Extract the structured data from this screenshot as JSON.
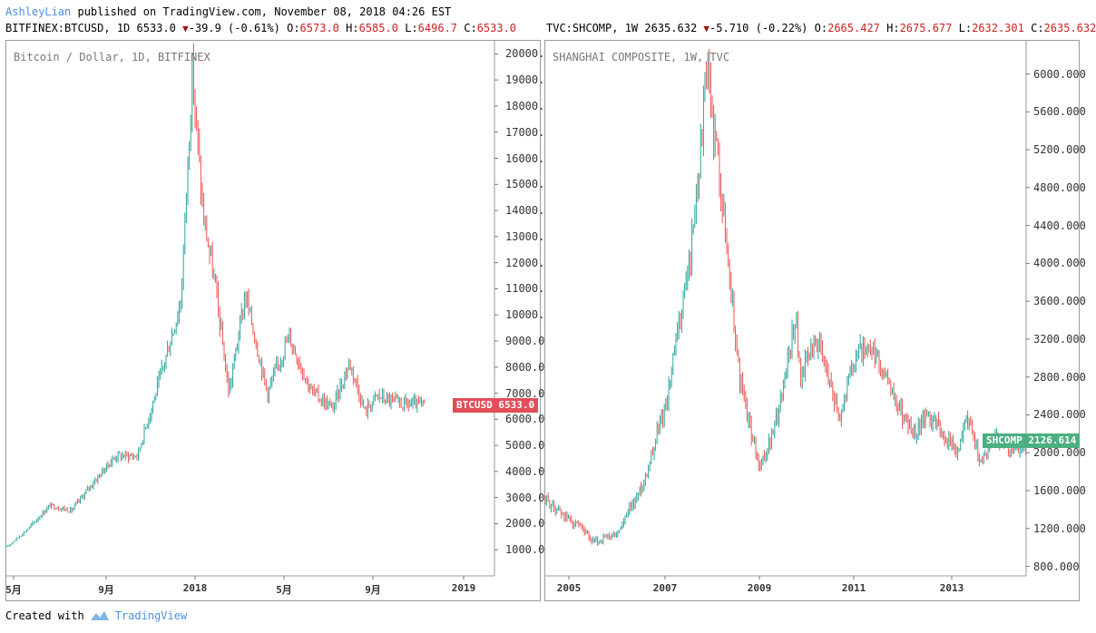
{
  "header": {
    "author": "AshleyLian",
    "published_text": " published on TradingView.com, November 08, 2018 04:26 EST"
  },
  "left_info": {
    "prefix": "BITFINEX:BTCUSD, 1D 6533.0",
    "change": "-39.9 (-0.61%)",
    "o_label": "O:",
    "o_val": "6573.0",
    "h_label": "H:",
    "h_val": "6585.0",
    "l_label": "L:",
    "l_val": "6496.7",
    "c_label": "C:",
    "c_val": "6533.0"
  },
  "right_info": {
    "prefix": "TVC:SHCOMP, 1W 2635.632",
    "change": "-5.710 (-0.22%)",
    "o_label": "O:",
    "o_val": "2665.427",
    "h_label": "H:",
    "h_val": "2675.677",
    "l_label": "L:",
    "l_val": "2632.301",
    "c_label": "C:",
    "c_val": "2635.632"
  },
  "footer": {
    "created_with": "Created with",
    "brand": "TradingView"
  },
  "colors": {
    "up": "#26a69a",
    "down": "#ef5350",
    "btc_tag": "#e04e5a",
    "shcomp_tag": "#4caf80"
  },
  "chart_data": [
    {
      "type": "line",
      "title": "Bitcoin / Dollar, 1D, BITFINEX",
      "symbol_tag": "BTCUSD",
      "last_value_label": "6533.0",
      "last_value": 6533,
      "ylim": [
        0,
        20500
      ],
      "yticks": [
        "1000.0",
        "2000.0",
        "3000.0",
        "4000.0",
        "5000.0",
        "6000.0",
        "7000.0",
        "8000.0",
        "9000.0",
        "10000.0",
        "11000.0",
        "12000.0",
        "13000.0",
        "14000.0",
        "15000.0",
        "16000.0",
        "17000.0",
        "18000.0",
        "19000.0",
        "20000.0"
      ],
      "xticks": [
        "5月",
        "9月",
        "2018",
        "5月",
        "9月",
        "2019"
      ],
      "x": [
        "2017-04-01",
        "2017-05-01",
        "2017-06-01",
        "2017-07-01",
        "2017-08-01",
        "2017-09-01",
        "2017-10-01",
        "2017-11-01",
        "2017-12-01",
        "2017-12-17",
        "2018-01-01",
        "2018-01-17",
        "2018-02-06",
        "2018-03-01",
        "2018-04-01",
        "2018-05-01",
        "2018-06-01",
        "2018-07-01",
        "2018-07-25",
        "2018-08-15",
        "2018-09-01",
        "2018-10-01",
        "2018-11-08"
      ],
      "values": [
        1100,
        1800,
        2700,
        2500,
        3600,
        4600,
        4600,
        7500,
        10500,
        19300,
        13800,
        11300,
        7000,
        10800,
        7000,
        9200,
        7100,
        6400,
        8200,
        6300,
        6900,
        6600,
        6533
      ]
    },
    {
      "type": "line",
      "title": "SHANGHAI COMPOSITE, 1W, TVC",
      "symbol_tag": "SHCOMP",
      "last_value_label": "2126.614",
      "last_value": 2126.614,
      "ylim": [
        700,
        6350
      ],
      "yticks": [
        "800.000",
        "1200.000",
        "1600.000",
        "2000.000",
        "2400.000",
        "2800.000",
        "3200.000",
        "3600.000",
        "4000.000",
        "4400.000",
        "4800.000",
        "5200.000",
        "5600.000",
        "6000.000"
      ],
      "xticks": [
        "2005",
        "2007",
        "2009",
        "2011",
        "2013"
      ],
      "x": [
        "2004-06",
        "2004-12",
        "2005-06",
        "2005-12",
        "2006-06",
        "2006-12",
        "2007-06",
        "2007-10",
        "2008-01",
        "2008-06",
        "2008-11",
        "2009-03",
        "2009-08",
        "2009-09",
        "2010-01",
        "2010-07",
        "2010-11",
        "2011-04",
        "2011-07",
        "2012-01",
        "2012-05",
        "2012-12",
        "2013-02",
        "2013-06",
        "2013-09",
        "2014-01",
        "2014-05"
      ],
      "values": [
        1500,
        1300,
        1050,
        1150,
        1650,
        2550,
        4100,
        6000,
        5000,
        2800,
        1800,
        2300,
        3450,
        2800,
        3200,
        2400,
        3100,
        3000,
        2700,
        2200,
        2400,
        2000,
        2400,
        1900,
        2200,
        2050,
        2050
      ]
    }
  ]
}
